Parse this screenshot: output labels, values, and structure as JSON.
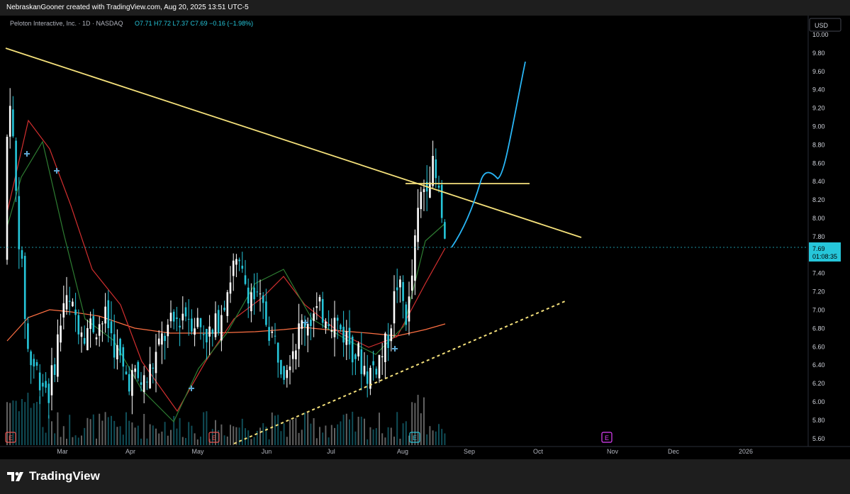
{
  "header": {
    "text": "NebraskanGooner created with TradingView.com, Aug 20, 2025 13:51 UTC-5"
  },
  "chart_data": {
    "type": "candlestick",
    "legend": "Peloton Interactive, Inc. · 1D · NASDAQ",
    "ohlc_text": "O7.71  H7.72  L7.37  C7.69  −0.16 (−1.98%)",
    "currency": "USD",
    "price_axis_labels": [
      "10.00",
      "9.80",
      "9.60",
      "9.40",
      "9.20",
      "9.00",
      "8.80",
      "8.60",
      "8.40",
      "8.20",
      "8.00",
      "7.80",
      "7.60",
      "7.40",
      "7.20",
      "7.00",
      "6.80",
      "6.60",
      "6.40",
      "6.20",
      "6.00",
      "5.80",
      "5.60"
    ],
    "time_axis_labels": [
      "Mar",
      "Apr",
      "May",
      "Jun",
      "Jul",
      "Aug",
      "Sep",
      "Oct",
      "Nov",
      "Dec",
      "2026"
    ],
    "current_price": "7.69",
    "countdown": "01:08:35",
    "earnings_markers": [
      "E",
      "E",
      "E",
      "E"
    ],
    "colors": {
      "up": "#ffffff",
      "down": "#26c6da",
      "trend": "#f5e17b",
      "ma_fast": "#2e7d32",
      "ma_mid": "#d32f2f",
      "ma_slow": "#ff7043",
      "projection": "#29b6f6",
      "earnings": "#e040fb",
      "earnings_past": "#ef5350"
    }
  },
  "footer": {
    "brand": "TradingView"
  }
}
